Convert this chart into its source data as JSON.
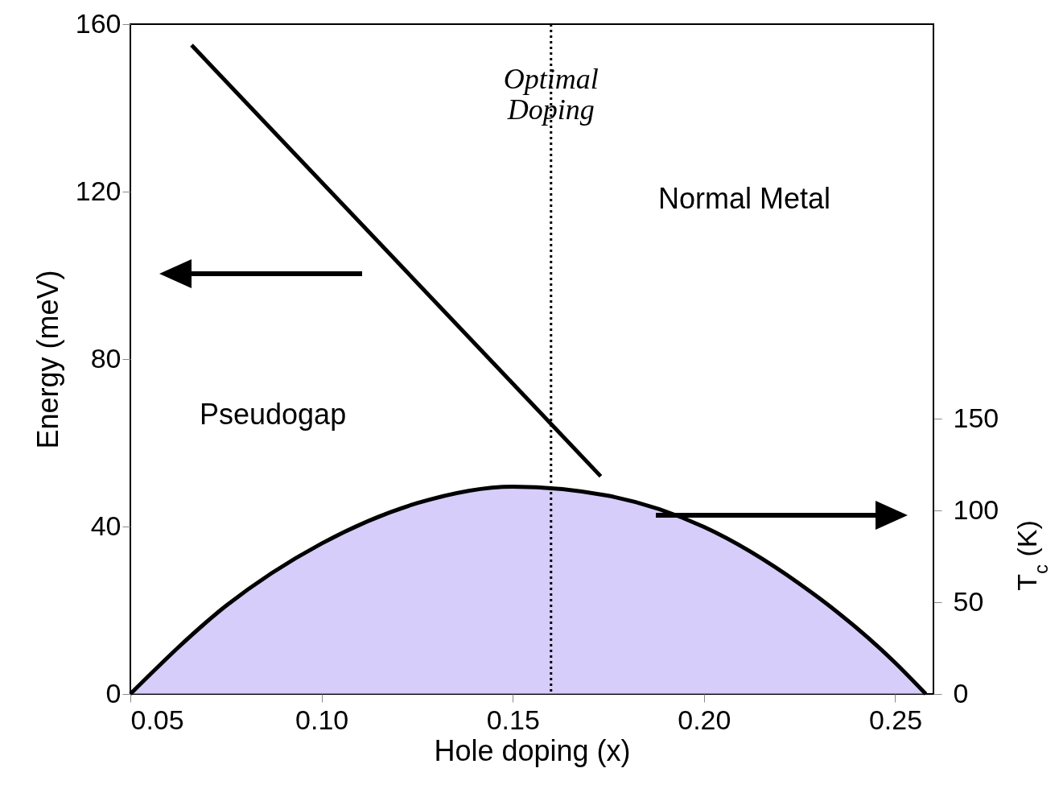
{
  "chart_data": {
    "type": "line",
    "xlabel": "Hole doping  (x)",
    "ylabel": "Energy (meV)",
    "y2label": "T$_{c}$ (K)",
    "annotations": [
      "Normal Metal",
      "Pseudogap"
    ],
    "series": [
      {
        "color": "#000000",
        "x": [
          0.066,
          0.173
        ],
        "values": [
          155,
          52
        ]
      },
      {
        "type": "area",
        "axis": "y2",
        "color": "#c4b8fa",
        "x": [
          0.05,
          0.075,
          0.1,
          0.125,
          0.15,
          0.175,
          0.2,
          0.225,
          0.25,
          0.258
        ],
        "values": [
          0,
          48,
          82,
          104,
          113,
          108,
          91,
          60,
          17,
          0
        ]
      }
    ],
    "xlim": [
      0.05,
      0.26
    ],
    "ylim": [
      0,
      160
    ],
    "y2lim": [
      0,
      365
    ],
    "xticks": [
      0.05,
      {
        "value": 0.1,
        "label": "0.10"
      },
      0.15,
      {
        "value": 0.2,
        "label": "0.20"
      },
      0.25
    ],
    "yticks": [
      0,
      40,
      80,
      120,
      160
    ],
    "y2ticks": [
      0,
      50,
      100,
      150
    ],
    "ref_lines": [
      {
        "axis": "x",
        "value": 0.16,
        "label": "Optimal Doping",
        "line_style": "dotted",
        "color": "#000000"
      }
    ]
  }
}
